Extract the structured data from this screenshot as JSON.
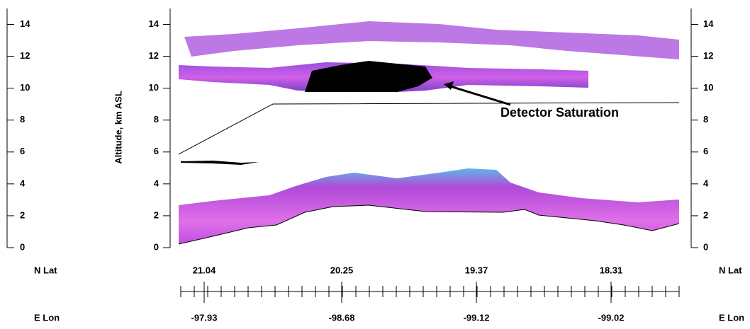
{
  "chart_data": {
    "type": "curtain",
    "y_label": "Altitude, km ASL",
    "ylim": [
      0,
      15
    ],
    "yticks": [
      0,
      2,
      4,
      6,
      8,
      10,
      12,
      14
    ],
    "annotation": "Detector Saturation",
    "lat_label": "N Lat",
    "lat_values": [
      "21.04",
      "20.25",
      "19.37",
      "18.31"
    ],
    "lon_label": "E Lon",
    "lon_values": [
      "-97.93",
      "-98.68",
      "-99.12",
      "-99.02"
    ]
  }
}
